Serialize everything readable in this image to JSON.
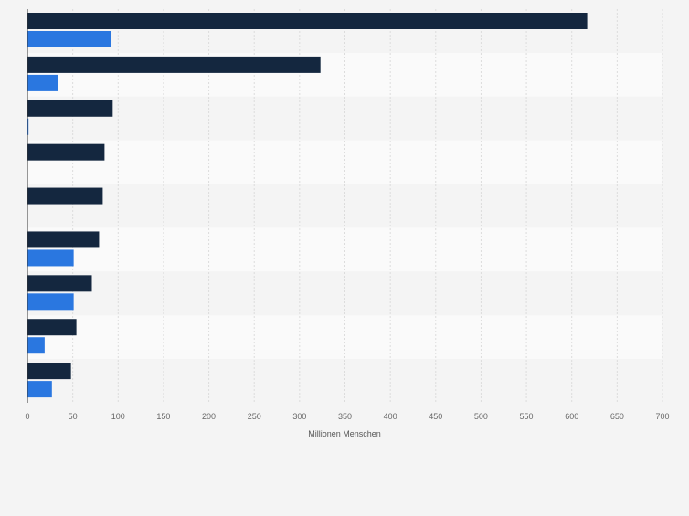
{
  "chart_data": {
    "type": "bar",
    "orientation": "horizontal",
    "categories": [
      "",
      "",
      "",
      "",
      "",
      "",
      "",
      "",
      ""
    ],
    "series": [
      {
        "values": [
          617,
          323,
          94,
          85,
          83,
          79,
          71,
          54,
          48
        ],
        "color": "#14273f"
      },
      {
        "values": [
          92,
          34,
          1,
          0,
          0,
          51,
          51,
          19,
          27
        ],
        "color": "#2a77e0"
      }
    ],
    "xlabel": "Millionen Menschen",
    "xlim": [
      0,
      700
    ],
    "xticks": [
      0,
      50,
      100,
      150,
      200,
      250,
      300,
      350,
      400,
      450,
      500,
      550,
      600,
      650,
      700
    ],
    "grid": true,
    "legend": "none"
  },
  "colors": {
    "background": "#f4f4f4",
    "band_light": "#f4f4f4",
    "band_alt": "#fafafa",
    "gridline": "#dcdcdc",
    "axis": "#333333",
    "tick_label": "#666666"
  }
}
